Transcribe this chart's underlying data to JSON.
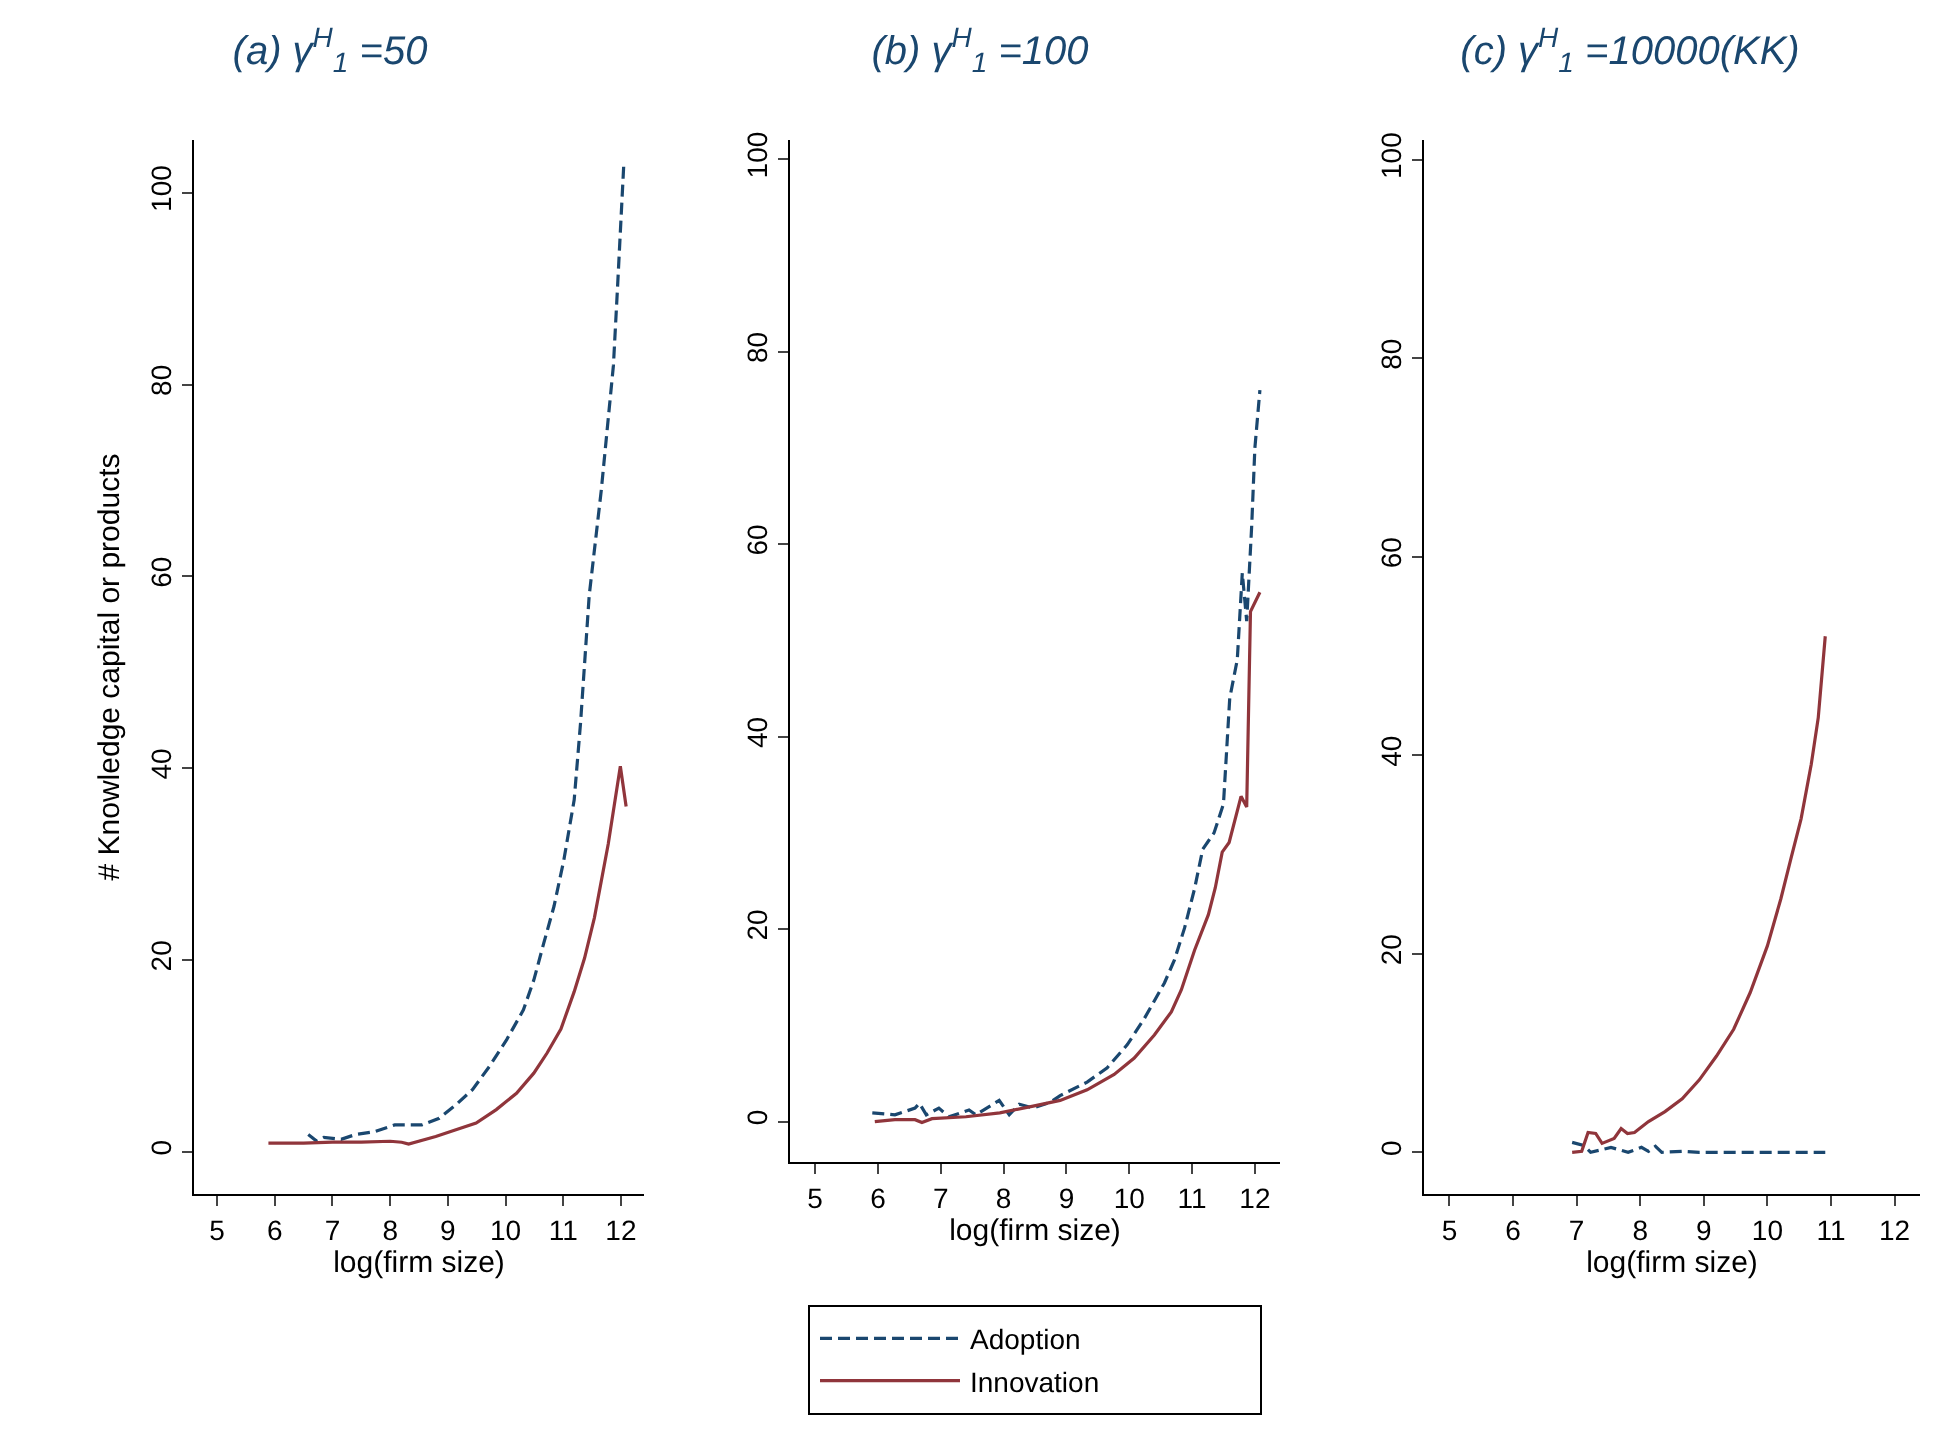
{
  "chart_data": [
    {
      "type": "line",
      "title": "(a) γ$^{H}$$_{1}$ =50",
      "xlabel": "log(firm size)",
      "ylabel": "# Knowledge capital or products",
      "xlim": [
        4.6,
        12.4
      ],
      "xticks": [
        5,
        6,
        7,
        8,
        9,
        10,
        11,
        12
      ],
      "ylim": [
        -4.4,
        105.5
      ],
      "yticks": [
        0,
        20,
        40,
        60,
        80,
        100
      ],
      "grid": false,
      "legend": false,
      "marker": "none",
      "series": [
        {
          "color": "#1a476f",
          "line_style": "dashed",
          "x": [
            6.58,
            6.73,
            6.85,
            7.15,
            7.4,
            7.73,
            8.08,
            8.55,
            8.85,
            9.14,
            9.43,
            9.72,
            10.02,
            10.31,
            10.49,
            10.66,
            10.84,
            11.01,
            11.19,
            11.3,
            11.45,
            11.66,
            11.87,
            11.94,
            12.05
          ],
          "values": [
            1.8,
            1.1,
            1.5,
            1.3,
            1.8,
            2.1,
            2.8,
            2.8,
            3.5,
            4.9,
            6.5,
            8.9,
            11.7,
            14.8,
            17.9,
            21.7,
            25.6,
            30.4,
            36.7,
            44.7,
            58,
            69,
            82,
            90,
            103
          ]
        },
        {
          "color": "#90353b",
          "line_style": "solid",
          "x": [
            5.89,
            6.5,
            7.0,
            7.5,
            8.0,
            8.2,
            8.32,
            8.79,
            9.14,
            9.49,
            9.84,
            10.19,
            10.49,
            10.72,
            10.96,
            11.19,
            11.37,
            11.54,
            11.78,
            11.99,
            12.09
          ],
          "values": [
            0.9,
            0.9,
            1.0,
            1.0,
            1.1,
            1.0,
            0.8,
            1.6,
            2.3,
            3.0,
            4.4,
            6.1,
            8.2,
            10.3,
            12.8,
            16.7,
            20.2,
            24.4,
            32.1,
            40.2,
            36
          ]
        }
      ]
    },
    {
      "type": "line",
      "title": "(b) γ$^{H}$$_{1}$ =100",
      "xlabel": "log(firm size)",
      "xlim": [
        4.6,
        12.4
      ],
      "xticks": [
        5,
        6,
        7,
        8,
        9,
        10,
        11,
        12
      ],
      "ylim": [
        -4.2,
        102
      ],
      "yticks": [
        0,
        20,
        40,
        60,
        80,
        100
      ],
      "grid": false,
      "legend": "bottom",
      "marker": "none",
      "series": [
        {
          "name": "Adoption",
          "color": "#1a476f",
          "line_style": "dashed",
          "x": [
            5.91,
            6.27,
            6.59,
            6.66,
            6.77,
            6.97,
            7.13,
            7.45,
            7.56,
            7.93,
            8.09,
            8.25,
            8.47,
            8.74,
            8.9,
            9.33,
            9.65,
            9.97,
            10.24,
            10.56,
            10.72,
            10.88,
            11.04,
            11.17,
            11.35,
            11.5,
            11.6,
            11.72,
            11.8,
            11.87,
            11.95,
            12.0,
            12.08
          ],
          "values": [
            0.9,
            0.7,
            1.4,
            1.9,
            0.7,
            1.4,
            0.5,
            1.2,
            0.7,
            2.2,
            0.7,
            1.8,
            1.4,
            2.0,
            2.7,
            4.1,
            5.6,
            8.0,
            10.7,
            14.4,
            16.8,
            20.1,
            24.2,
            28.3,
            30,
            33,
            44,
            48,
            57,
            52,
            62,
            70,
            76
          ]
        },
        {
          "name": "Innovation",
          "color": "#90353b",
          "line_style": "solid",
          "x": [
            5.95,
            6.27,
            6.59,
            6.7,
            6.86,
            7.4,
            7.94,
            8.47,
            8.9,
            9.33,
            9.76,
            10.08,
            10.4,
            10.67,
            10.83,
            11.04,
            11.26,
            11.37,
            11.48,
            11.59,
            11.78,
            11.87,
            11.93,
            12.08
          ],
          "values": [
            0,
            0.2,
            0.2,
            -0.1,
            0.3,
            0.5,
            0.9,
            1.6,
            2.2,
            3.3,
            4.9,
            6.6,
            9.0,
            11.4,
            13.7,
            17.8,
            21.5,
            24.3,
            28,
            29,
            33.8,
            32.7,
            53,
            55
          ]
        }
      ]
    },
    {
      "type": "line",
      "title": "(c) γ$^{H}$$_{1}$ =10000(KK)",
      "xlabel": "log(firm size)",
      "xlim": [
        4.6,
        12.4
      ],
      "xticks": [
        5,
        6,
        7,
        8,
        9,
        10,
        11,
        12
      ],
      "ylim": [
        -4.2,
        102
      ],
      "yticks": [
        0,
        20,
        40,
        60,
        80,
        100
      ],
      "grid": false,
      "legend": false,
      "marker": "none",
      "series": [
        {
          "color": "#1a476f",
          "line_style": "dashed",
          "x": [
            6.93,
            7.11,
            7.22,
            7.54,
            7.81,
            8.02,
            8.13,
            8.24,
            8.34,
            8.66,
            8.93,
            10.91
          ],
          "values": [
            1.0,
            0.7,
            0,
            0.5,
            0,
            0.5,
            0.1,
            0.6,
            0,
            0.1,
            0,
            0
          ]
        },
        {
          "color": "#90353b",
          "line_style": "solid",
          "x": [
            6.93,
            7.08,
            7.18,
            7.3,
            7.4,
            7.59,
            7.7,
            7.8,
            7.91,
            8.13,
            8.39,
            8.66,
            8.93,
            9.2,
            9.47,
            9.73,
            10.0,
            10.21,
            10.37,
            10.53,
            10.69,
            10.8,
            10.91
          ],
          "values": [
            0,
            0.1,
            2,
            1.9,
            0.9,
            1.4,
            2.4,
            1.9,
            2.0,
            3.1,
            4.1,
            5.4,
            7.3,
            9.7,
            12.4,
            16.1,
            20.8,
            25.5,
            29.6,
            33.6,
            39.1,
            43.8,
            52
          ]
        }
      ]
    }
  ]
}
